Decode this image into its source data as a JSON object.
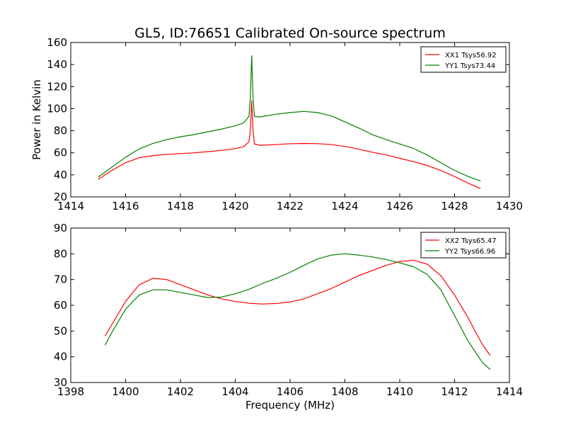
{
  "chart_data": [
    {
      "type": "line",
      "title": "GL5, ID:76651 Calibrated On-source spectrum",
      "xlabel": "",
      "ylabel": "Power in Kelvin",
      "xlim": [
        1414,
        1430
      ],
      "ylim": [
        20,
        160
      ],
      "xticks": [
        1414,
        1416,
        1418,
        1420,
        1422,
        1424,
        1426,
        1428,
        1430
      ],
      "yticks": [
        20,
        40,
        60,
        80,
        100,
        120,
        140,
        160
      ],
      "grid": false,
      "legend": "top-right",
      "series": [
        {
          "name": "XX1 Tsys56.92",
          "color": "#ff0000",
          "x": [
            1415.0,
            1415.5,
            1416.0,
            1416.5,
            1417.0,
            1417.5,
            1418.0,
            1418.5,
            1419.0,
            1419.5,
            1420.0,
            1420.3,
            1420.5,
            1420.55,
            1420.6,
            1420.65,
            1420.7,
            1420.9,
            1421.5,
            1422.0,
            1422.5,
            1423.0,
            1423.5,
            1424.0,
            1424.5,
            1425.0,
            1425.5,
            1426.0,
            1426.5,
            1427.0,
            1427.5,
            1428.0,
            1428.5,
            1428.95
          ],
          "y": [
            36,
            44,
            51,
            55.5,
            57.5,
            58.5,
            59.3,
            60,
            61,
            62.2,
            63.8,
            65.5,
            70,
            80,
            107,
            80,
            68,
            66.8,
            67.5,
            68.2,
            68.5,
            68.3,
            67.5,
            65.8,
            63.3,
            60.5,
            58,
            55,
            52,
            48.5,
            44,
            38.5,
            32.5,
            27.5
          ]
        },
        {
          "name": "YY1 Tsys73.44",
          "color": "#008000",
          "x": [
            1415.0,
            1415.5,
            1416.0,
            1416.5,
            1417.0,
            1417.5,
            1418.0,
            1418.5,
            1419.0,
            1419.5,
            1420.0,
            1420.3,
            1420.5,
            1420.55,
            1420.6,
            1420.65,
            1420.7,
            1420.9,
            1421.5,
            1422.0,
            1422.5,
            1423.0,
            1423.5,
            1424.0,
            1424.5,
            1425.0,
            1425.5,
            1426.0,
            1426.5,
            1427.0,
            1427.5,
            1428.0,
            1428.5,
            1428.95
          ],
          "y": [
            38,
            47,
            56,
            63.5,
            68.5,
            72,
            74.5,
            76.5,
            79,
            81.5,
            84.5,
            87,
            93,
            110,
            148,
            110,
            93,
            92.5,
            95,
            96.5,
            97.5,
            96.5,
            93.5,
            88,
            82.5,
            76.5,
            72,
            68,
            64,
            58,
            51,
            44,
            38.5,
            34.5
          ]
        }
      ]
    },
    {
      "type": "line",
      "title": "",
      "xlabel": "Frequency (MHz)",
      "ylabel": "",
      "xlim": [
        1398,
        1414
      ],
      "ylim": [
        30,
        90
      ],
      "xticks": [
        1398,
        1400,
        1402,
        1404,
        1406,
        1408,
        1410,
        1412,
        1414
      ],
      "yticks": [
        30,
        40,
        50,
        60,
        70,
        80,
        90
      ],
      "grid": false,
      "legend": "top-right",
      "series": [
        {
          "name": "XX2 Tsys65.47",
          "color": "#ff0000",
          "x": [
            1399.25,
            1399.5,
            1400.0,
            1400.5,
            1401.0,
            1401.5,
            1402.0,
            1402.5,
            1403.0,
            1403.5,
            1404.0,
            1404.5,
            1405.0,
            1405.5,
            1406.0,
            1406.5,
            1407.0,
            1407.5,
            1408.0,
            1408.5,
            1409.0,
            1409.5,
            1410.0,
            1410.5,
            1411.0,
            1411.5,
            1412.0,
            1412.5,
            1413.0,
            1413.3
          ],
          "y": [
            48,
            52.5,
            61.5,
            68,
            70.5,
            70,
            68,
            66,
            64,
            62.5,
            61.5,
            60.8,
            60.5,
            60.7,
            61.3,
            62.5,
            64.5,
            66.5,
            69,
            71.5,
            73.5,
            75.5,
            77,
            77.5,
            76,
            71.5,
            64,
            55,
            45,
            40.5
          ]
        },
        {
          "name": "YY2 Tsys66.96",
          "color": "#008000",
          "x": [
            1399.25,
            1399.5,
            1400.0,
            1400.5,
            1401.0,
            1401.5,
            1402.0,
            1402.5,
            1403.0,
            1403.5,
            1404.0,
            1404.5,
            1405.0,
            1405.5,
            1406.0,
            1406.5,
            1407.0,
            1407.5,
            1408.0,
            1408.5,
            1409.0,
            1409.5,
            1410.0,
            1410.5,
            1411.0,
            1411.5,
            1412.0,
            1412.5,
            1413.0,
            1413.3
          ],
          "y": [
            44.5,
            49.5,
            58.5,
            64,
            66,
            66,
            65,
            64,
            63,
            63.2,
            64.5,
            66.2,
            68.5,
            70.5,
            72.8,
            75.5,
            78,
            79.5,
            80,
            79.5,
            78.8,
            77.8,
            76.5,
            75,
            72,
            66,
            56,
            46,
            38,
            35
          ]
        }
      ]
    }
  ]
}
